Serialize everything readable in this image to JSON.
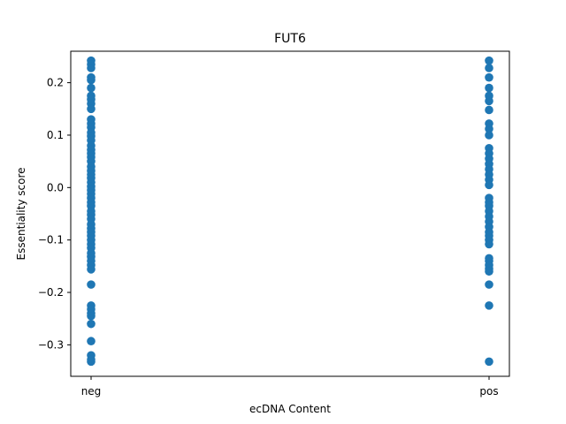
{
  "chart_data": {
    "type": "scatter",
    "title": "FUT6",
    "xlabel": "ecDNA Content",
    "ylabel": "Essentiality score",
    "categories": [
      "neg",
      "pos"
    ],
    "ylim": [
      -0.36,
      0.26
    ],
    "yticks": [
      -0.3,
      -0.2,
      -0.1,
      0.0,
      0.1,
      0.2
    ],
    "ytick_labels": [
      "−0.3",
      "−0.2",
      "−0.1",
      "0.0",
      "0.1",
      "0.2"
    ],
    "grid": false,
    "marker_color": "#1f77b4",
    "series": [
      {
        "category": "neg",
        "values": [
          0.242,
          0.235,
          0.228,
          0.21,
          0.205,
          0.19,
          0.175,
          0.168,
          0.16,
          0.15,
          0.13,
          0.122,
          0.115,
          0.105,
          0.098,
          0.09,
          0.08,
          0.072,
          0.065,
          0.058,
          0.05,
          0.04,
          0.032,
          0.025,
          0.018,
          0.01,
          0.002,
          -0.005,
          -0.012,
          -0.02,
          -0.028,
          -0.035,
          -0.045,
          -0.052,
          -0.06,
          -0.07,
          -0.078,
          -0.085,
          -0.092,
          -0.1,
          -0.108,
          -0.115,
          -0.125,
          -0.132,
          -0.14,
          -0.148,
          -0.156,
          -0.185,
          -0.225,
          -0.232,
          -0.24,
          -0.245,
          -0.26,
          -0.293,
          -0.32,
          -0.328,
          -0.332
        ]
      },
      {
        "category": "pos",
        "values": [
          0.242,
          0.228,
          0.21,
          0.19,
          0.175,
          0.165,
          0.148,
          0.122,
          0.112,
          0.1,
          0.075,
          0.065,
          0.055,
          0.045,
          0.035,
          0.025,
          0.015,
          0.005,
          -0.02,
          -0.028,
          -0.035,
          -0.045,
          -0.055,
          -0.065,
          -0.075,
          -0.085,
          -0.092,
          -0.1,
          -0.108,
          -0.135,
          -0.14,
          -0.148,
          -0.155,
          -0.16,
          -0.185,
          -0.225,
          -0.332
        ]
      }
    ]
  }
}
